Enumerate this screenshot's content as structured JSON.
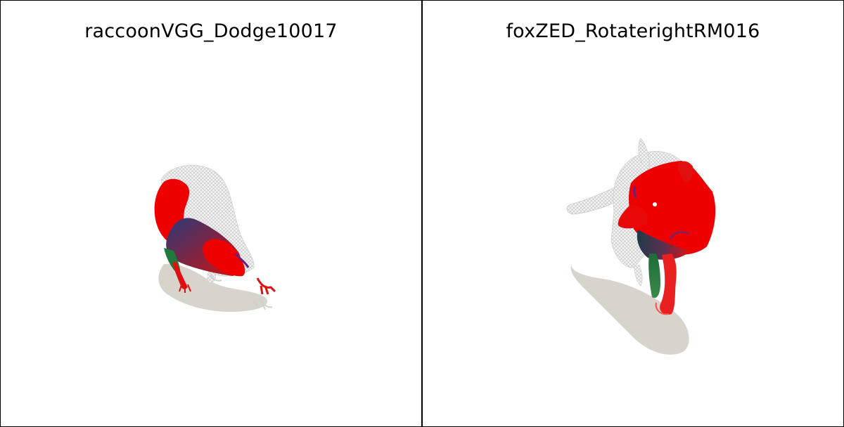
{
  "viewports": [
    {
      "title": "raccoonVGG_Dodge10017",
      "subject": "raccoon-mesh"
    },
    {
      "title": "foxZED_RotaterightRM016",
      "subject": "fox-mesh"
    }
  ],
  "colors": {
    "background": "#ffffff",
    "border": "#000000",
    "shadow": "#d8d4cc",
    "wireframe": "#d9d9d9",
    "surface_red": "#ee0000",
    "surface_green": "#1e7a3a",
    "surface_blue": "#2a3a78"
  }
}
